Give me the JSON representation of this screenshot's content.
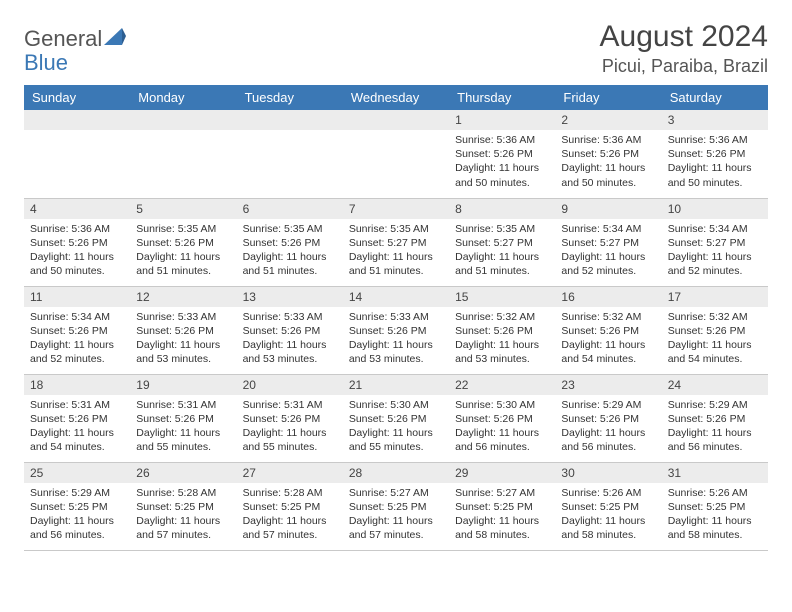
{
  "logo": {
    "part1": "General",
    "part2": "Blue"
  },
  "title": "August 2024",
  "location": "Picui, Paraiba, Brazil",
  "colors": {
    "header_bg": "#3b78b5",
    "header_text": "#ffffff",
    "daynum_bg": "#ececec",
    "border": "#c9c9c9",
    "text": "#333333",
    "logo_gray": "#555555",
    "logo_blue": "#3b78b5"
  },
  "weekdays": [
    "Sunday",
    "Monday",
    "Tuesday",
    "Wednesday",
    "Thursday",
    "Friday",
    "Saturday"
  ],
  "first_weekday_index": 4,
  "days_in_month": 31,
  "days": {
    "1": {
      "sunrise": "5:36 AM",
      "sunset": "5:26 PM",
      "daylight": "11 hours and 50 minutes."
    },
    "2": {
      "sunrise": "5:36 AM",
      "sunset": "5:26 PM",
      "daylight": "11 hours and 50 minutes."
    },
    "3": {
      "sunrise": "5:36 AM",
      "sunset": "5:26 PM",
      "daylight": "11 hours and 50 minutes."
    },
    "4": {
      "sunrise": "5:36 AM",
      "sunset": "5:26 PM",
      "daylight": "11 hours and 50 minutes."
    },
    "5": {
      "sunrise": "5:35 AM",
      "sunset": "5:26 PM",
      "daylight": "11 hours and 51 minutes."
    },
    "6": {
      "sunrise": "5:35 AM",
      "sunset": "5:26 PM",
      "daylight": "11 hours and 51 minutes."
    },
    "7": {
      "sunrise": "5:35 AM",
      "sunset": "5:27 PM",
      "daylight": "11 hours and 51 minutes."
    },
    "8": {
      "sunrise": "5:35 AM",
      "sunset": "5:27 PM",
      "daylight": "11 hours and 51 minutes."
    },
    "9": {
      "sunrise": "5:34 AM",
      "sunset": "5:27 PM",
      "daylight": "11 hours and 52 minutes."
    },
    "10": {
      "sunrise": "5:34 AM",
      "sunset": "5:27 PM",
      "daylight": "11 hours and 52 minutes."
    },
    "11": {
      "sunrise": "5:34 AM",
      "sunset": "5:26 PM",
      "daylight": "11 hours and 52 minutes."
    },
    "12": {
      "sunrise": "5:33 AM",
      "sunset": "5:26 PM",
      "daylight": "11 hours and 53 minutes."
    },
    "13": {
      "sunrise": "5:33 AM",
      "sunset": "5:26 PM",
      "daylight": "11 hours and 53 minutes."
    },
    "14": {
      "sunrise": "5:33 AM",
      "sunset": "5:26 PM",
      "daylight": "11 hours and 53 minutes."
    },
    "15": {
      "sunrise": "5:32 AM",
      "sunset": "5:26 PM",
      "daylight": "11 hours and 53 minutes."
    },
    "16": {
      "sunrise": "5:32 AM",
      "sunset": "5:26 PM",
      "daylight": "11 hours and 54 minutes."
    },
    "17": {
      "sunrise": "5:32 AM",
      "sunset": "5:26 PM",
      "daylight": "11 hours and 54 minutes."
    },
    "18": {
      "sunrise": "5:31 AM",
      "sunset": "5:26 PM",
      "daylight": "11 hours and 54 minutes."
    },
    "19": {
      "sunrise": "5:31 AM",
      "sunset": "5:26 PM",
      "daylight": "11 hours and 55 minutes."
    },
    "20": {
      "sunrise": "5:31 AM",
      "sunset": "5:26 PM",
      "daylight": "11 hours and 55 minutes."
    },
    "21": {
      "sunrise": "5:30 AM",
      "sunset": "5:26 PM",
      "daylight": "11 hours and 55 minutes."
    },
    "22": {
      "sunrise": "5:30 AM",
      "sunset": "5:26 PM",
      "daylight": "11 hours and 56 minutes."
    },
    "23": {
      "sunrise": "5:29 AM",
      "sunset": "5:26 PM",
      "daylight": "11 hours and 56 minutes."
    },
    "24": {
      "sunrise": "5:29 AM",
      "sunset": "5:26 PM",
      "daylight": "11 hours and 56 minutes."
    },
    "25": {
      "sunrise": "5:29 AM",
      "sunset": "5:25 PM",
      "daylight": "11 hours and 56 minutes."
    },
    "26": {
      "sunrise": "5:28 AM",
      "sunset": "5:25 PM",
      "daylight": "11 hours and 57 minutes."
    },
    "27": {
      "sunrise": "5:28 AM",
      "sunset": "5:25 PM",
      "daylight": "11 hours and 57 minutes."
    },
    "28": {
      "sunrise": "5:27 AM",
      "sunset": "5:25 PM",
      "daylight": "11 hours and 57 minutes."
    },
    "29": {
      "sunrise": "5:27 AM",
      "sunset": "5:25 PM",
      "daylight": "11 hours and 58 minutes."
    },
    "30": {
      "sunrise": "5:26 AM",
      "sunset": "5:25 PM",
      "daylight": "11 hours and 58 minutes."
    },
    "31": {
      "sunrise": "5:26 AM",
      "sunset": "5:25 PM",
      "daylight": "11 hours and 58 minutes."
    }
  },
  "labels": {
    "sunrise": "Sunrise:",
    "sunset": "Sunset:",
    "daylight": "Daylight:"
  }
}
